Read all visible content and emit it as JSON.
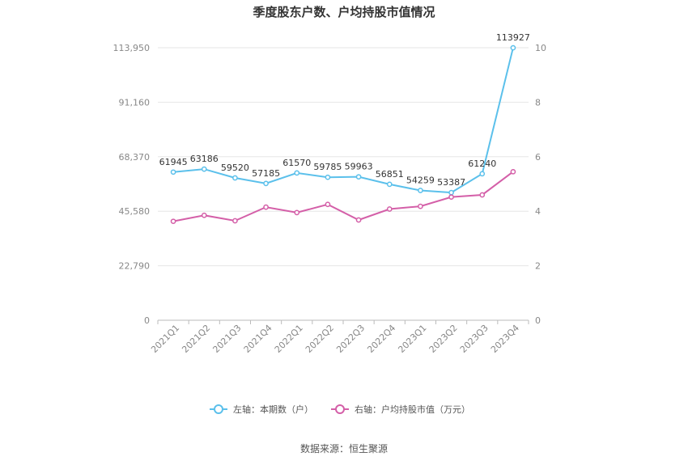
{
  "chart_data": {
    "type": "line",
    "title": "季度股东户数、户均持股市值情况",
    "categories": [
      "2021Q1",
      "2021Q2",
      "2021Q3",
      "2021Q4",
      "2022Q1",
      "2022Q2",
      "2022Q3",
      "2022Q4",
      "2023Q1",
      "2023Q2",
      "2023Q3",
      "2023Q4"
    ],
    "left_axis": {
      "ticks": [
        "0",
        "22,790",
        "45,580",
        "68,370",
        "91,160",
        "113,950"
      ],
      "range": [
        0,
        113950
      ]
    },
    "right_axis": {
      "ticks": [
        "0",
        "2",
        "4",
        "6",
        "8",
        "10"
      ],
      "range": [
        0,
        10
      ]
    },
    "series": [
      {
        "name": "左轴：本期数（户）",
        "axis": "left",
        "color": "#5bc0eb",
        "values": [
          61945,
          63186,
          59520,
          57185,
          61570,
          59785,
          59963,
          56851,
          54259,
          53387,
          61240,
          113927
        ],
        "labels": [
          "61945",
          "63186",
          "59520",
          "57185",
          "61570",
          "59785",
          "59963",
          "56851",
          "54259",
          "53387",
          "61240",
          "113927"
        ]
      },
      {
        "name": "右轴：户均持股市值（万元）",
        "axis": "right",
        "color": "#d45fa8",
        "values": [
          3.63,
          3.85,
          3.65,
          4.15,
          3.95,
          4.25,
          3.68,
          4.08,
          4.18,
          4.52,
          4.6,
          5.45
        ]
      }
    ],
    "grid": true,
    "legend_position": "bottom"
  },
  "source": "数据来源：恒生聚源"
}
